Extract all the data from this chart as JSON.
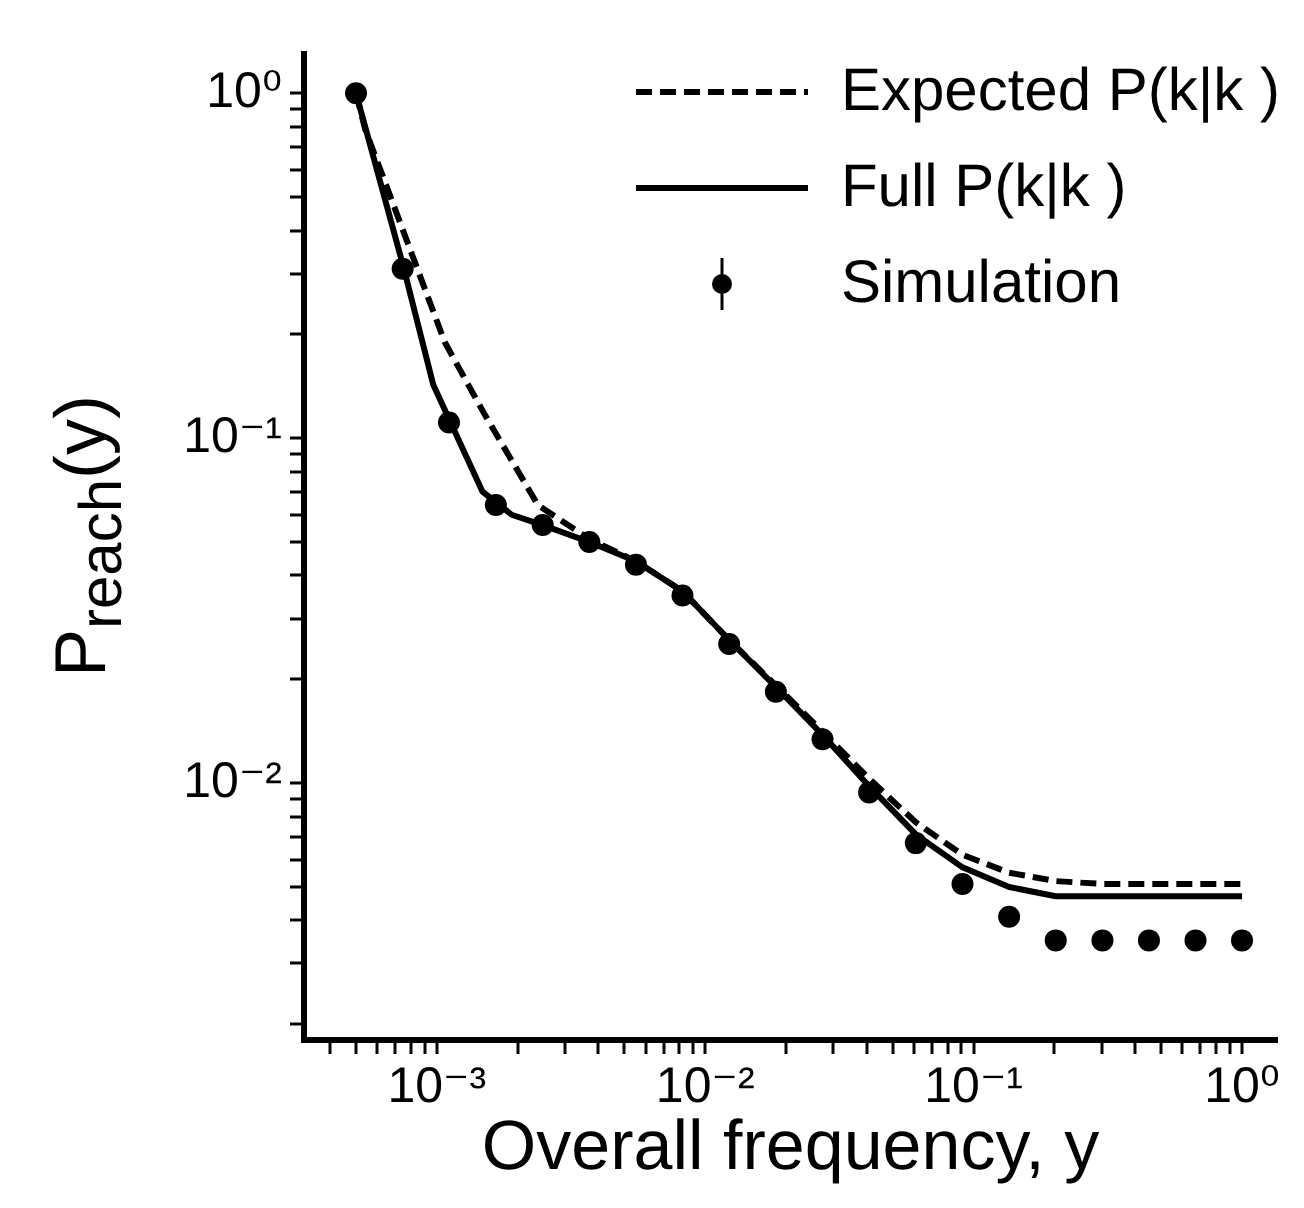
{
  "chart_data": {
    "type": "line",
    "xlabel": "Overall frequency, y",
    "ylabel": "P$_{reach}$(y)",
    "log": "xy",
    "grid": false,
    "legend": "top right",
    "xlim": [
      0.00032,
      1.35
    ],
    "ylim": [
      0.0018,
      1.3
    ],
    "xticks": [
      {
        "value": 0.0004,
        "label": null
      },
      {
        "value": 0.0005,
        "label": null
      },
      {
        "value": 0.0006,
        "label": null
      },
      {
        "value": 0.0007,
        "label": null
      },
      {
        "value": 0.0008,
        "label": null
      },
      {
        "value": 0.0009,
        "label": null
      },
      {
        "value": 0.001,
        "label": "10⁻³"
      },
      {
        "value": 0.002,
        "label": null
      },
      {
        "value": 0.003,
        "label": null
      },
      {
        "value": 0.004,
        "label": null
      },
      {
        "value": 0.005,
        "label": null
      },
      {
        "value": 0.006,
        "label": null
      },
      {
        "value": 0.007,
        "label": null
      },
      {
        "value": 0.008,
        "label": null
      },
      {
        "value": 0.009,
        "label": null
      },
      {
        "value": 0.01,
        "label": "10⁻²"
      },
      {
        "value": 0.02,
        "label": null
      },
      {
        "value": 0.03,
        "label": null
      },
      {
        "value": 0.04,
        "label": null
      },
      {
        "value": 0.05,
        "label": null
      },
      {
        "value": 0.06,
        "label": null
      },
      {
        "value": 0.07,
        "label": null
      },
      {
        "value": 0.08,
        "label": null
      },
      {
        "value": 0.09,
        "label": null
      },
      {
        "value": 0.1,
        "label": "10⁻¹"
      },
      {
        "value": 0.2,
        "label": null
      },
      {
        "value": 0.3,
        "label": null
      },
      {
        "value": 0.4,
        "label": null
      },
      {
        "value": 0.5,
        "label": null
      },
      {
        "value": 0.6,
        "label": null
      },
      {
        "value": 0.7,
        "label": null
      },
      {
        "value": 0.8,
        "label": null
      },
      {
        "value": 0.9,
        "label": null
      },
      {
        "value": 1,
        "label": "10⁰"
      }
    ],
    "yticks": [
      {
        "value": 0.002,
        "label": null
      },
      {
        "value": 0.003,
        "label": null
      },
      {
        "value": 0.004,
        "label": null
      },
      {
        "value": 0.005,
        "label": null
      },
      {
        "value": 0.006,
        "label": null
      },
      {
        "value": 0.007,
        "label": null
      },
      {
        "value": 0.008,
        "label": null
      },
      {
        "value": 0.009,
        "label": null
      },
      {
        "value": 0.01,
        "label": "10⁻²"
      },
      {
        "value": 0.02,
        "label": null
      },
      {
        "value": 0.03,
        "label": null
      },
      {
        "value": 0.04,
        "label": null
      },
      {
        "value": 0.05,
        "label": null
      },
      {
        "value": 0.06,
        "label": null
      },
      {
        "value": 0.07,
        "label": null
      },
      {
        "value": 0.08,
        "label": null
      },
      {
        "value": 0.09,
        "label": null
      },
      {
        "value": 0.1,
        "label": "10⁻¹"
      },
      {
        "value": 0.2,
        "label": null
      },
      {
        "value": 0.3,
        "label": null
      },
      {
        "value": 0.4,
        "label": null
      },
      {
        "value": 0.5,
        "label": null
      },
      {
        "value": 0.6,
        "label": null
      },
      {
        "value": 0.7,
        "label": null
      },
      {
        "value": 0.8,
        "label": null
      },
      {
        "value": 0.9,
        "label": null
      },
      {
        "value": 1,
        "label": "10⁰"
      }
    ],
    "series": [
      {
        "name": "Expected P(k|k )",
        "type": "line",
        "color": "#000000",
        "line_style": "dashed",
        "marker": "none",
        "x": [
          0.0005,
          0.00054,
          0.00107,
          0.0015,
          0.00238,
          0.0037,
          0.00552,
          0.00823,
          0.01228,
          0.01833,
          0.02735,
          0.0408,
          0.0609,
          0.0909,
          0.1356,
          0.2023,
          0.302,
          1.0
        ],
        "values": [
          1.0,
          0.79,
          0.19,
          0.118,
          0.064,
          0.051,
          0.044,
          0.036,
          0.026,
          0.0192,
          0.0141,
          0.0103,
          0.0077,
          0.0062,
          0.0055,
          0.0052,
          0.0051,
          0.0051
        ]
      },
      {
        "name": "Full P(k|k )",
        "type": "line",
        "color": "#000000",
        "line_style": "solid",
        "marker": "none",
        "x": [
          0.0005,
          0.000746,
          0.00097,
          0.00148,
          0.0019,
          0.00248,
          0.0037,
          0.00552,
          0.00823,
          0.01228,
          0.01833,
          0.02735,
          0.0408,
          0.0609,
          0.0909,
          0.1356,
          0.2023,
          1.0
        ],
        "values": [
          1.0,
          0.32,
          0.143,
          0.07,
          0.06,
          0.056,
          0.05,
          0.044,
          0.036,
          0.026,
          0.019,
          0.0138,
          0.0098,
          0.0071,
          0.0057,
          0.005,
          0.0047,
          0.0047
        ]
      },
      {
        "name": "Simulation",
        "type": "scatter",
        "color": "#000000",
        "marker": "circle",
        "x": [
          0.0005,
          0.000746,
          0.00111,
          0.00166,
          0.00248,
          0.0037,
          0.00552,
          0.00823,
          0.01228,
          0.01833,
          0.02735,
          0.0408,
          0.0609,
          0.0909,
          0.1356,
          0.2023,
          0.302,
          0.45,
          0.671,
          1.0
        ],
        "values": [
          1.0,
          0.31,
          0.111,
          0.064,
          0.056,
          0.05,
          0.043,
          0.035,
          0.0253,
          0.0184,
          0.0134,
          0.0094,
          0.0067,
          0.0051,
          0.0041,
          0.0035,
          0.0035,
          0.0035,
          0.0035,
          0.0035
        ]
      }
    ]
  }
}
